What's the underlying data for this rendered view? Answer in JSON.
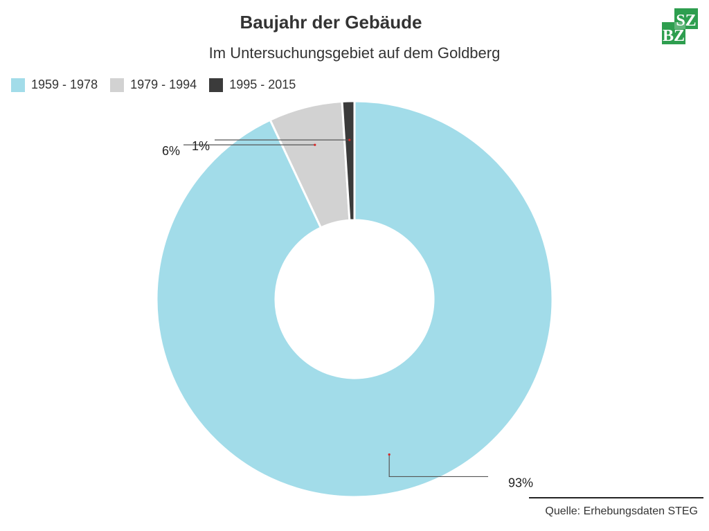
{
  "header": {
    "title": "Baujahr der Gebäude",
    "subtitle": "Im Untersuchungsgebiet auf dem Goldberg"
  },
  "logo": {
    "text_top": "SZ",
    "text_bottom": "BZ",
    "color": "#2e9e4f"
  },
  "source": "Quelle: Erhebungsdaten STEG",
  "chart_data": {
    "type": "pie",
    "style": "donut",
    "title": "Baujahr der Gebäude",
    "subtitle": "Im Untersuchungsgebiet auf dem Goldberg",
    "legend_position": "top-left",
    "categories": [
      "1959 - 1978",
      "1979 - 1994",
      "1995 - 2015"
    ],
    "values": [
      93,
      6,
      1
    ],
    "unit": "%",
    "data_labels": [
      "93%",
      "6%",
      "1%"
    ],
    "colors": [
      "#a2dce9",
      "#d2d2d2",
      "#3b3b3b"
    ]
  }
}
